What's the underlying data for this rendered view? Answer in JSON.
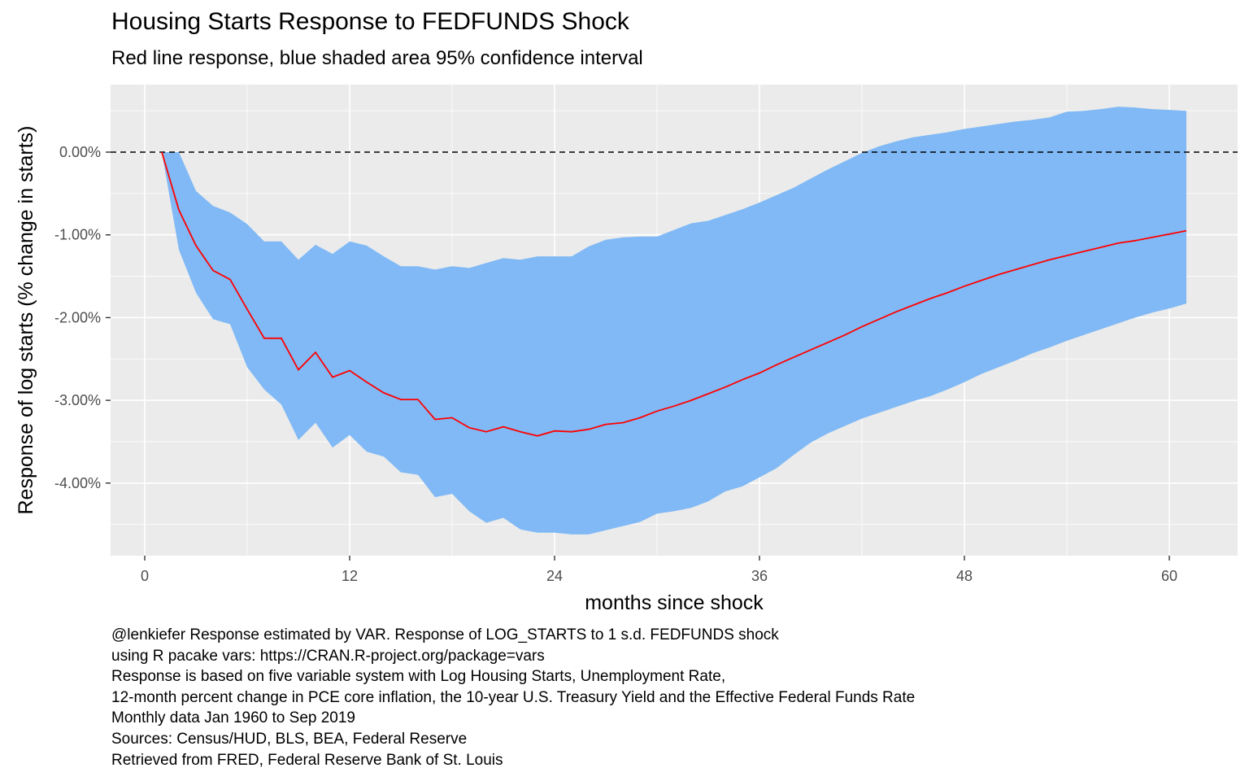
{
  "chart_data": {
    "type": "line",
    "title": "Housing Starts Response to FEDFUNDS Shock",
    "subtitle": "Red line response, blue shaded area 95% confidence interval",
    "xlabel": "months since shock",
    "ylabel": "Response of log starts (% change in starts)",
    "x_ticks": [
      0,
      12,
      24,
      36,
      48,
      60
    ],
    "y_ticks": [
      0.0,
      -1.0,
      -2.0,
      -3.0,
      -4.0
    ],
    "y_tick_labels": [
      "0.00%",
      "-1.00%",
      "-2.00%",
      "-3.00%",
      "-4.00%"
    ],
    "xlim": [
      -2,
      63
    ],
    "ylim": [
      -4.93,
      0.8
    ],
    "reference_line": {
      "y": 0,
      "style": "dashed"
    },
    "x": [
      1,
      2,
      3,
      4,
      5,
      6,
      7,
      8,
      9,
      10,
      11,
      12,
      13,
      14,
      15,
      16,
      17,
      18,
      19,
      20,
      21,
      22,
      23,
      24,
      25,
      26,
      27,
      28,
      29,
      30,
      31,
      32,
      33,
      34,
      35,
      36,
      37,
      38,
      39,
      40,
      41,
      42,
      43,
      44,
      45,
      46,
      47,
      48,
      49,
      50,
      51,
      52,
      53,
      54,
      55,
      56,
      57,
      58,
      59,
      60,
      61
    ],
    "series": [
      {
        "name": "Response",
        "color": "#ff0000",
        "values": [
          0.0,
          -0.7,
          -1.13,
          -1.43,
          -1.54,
          -1.9,
          -2.25,
          -2.25,
          -2.63,
          -2.42,
          -2.72,
          -2.64,
          -2.78,
          -2.91,
          -2.99,
          -2.99,
          -3.23,
          -3.21,
          -3.33,
          -3.38,
          -3.32,
          -3.38,
          -3.43,
          -3.37,
          -3.38,
          -3.35,
          -3.29,
          -3.27,
          -3.21,
          -3.13,
          -3.07,
          -3.0,
          -2.92,
          -2.84,
          -2.75,
          -2.67,
          -2.57,
          -2.48,
          -2.39,
          -2.3,
          -2.21,
          -2.11,
          -2.02,
          -1.93,
          -1.85,
          -1.77,
          -1.7,
          -1.62,
          -1.55,
          -1.48,
          -1.42,
          -1.36,
          -1.3,
          -1.25,
          -1.2,
          -1.15,
          -1.1,
          -1.07,
          -1.03,
          -0.99,
          -0.95
        ]
      },
      {
        "name": "95% CI upper",
        "color": "#80b9f5",
        "values": [
          0.0,
          0.0,
          -0.47,
          -0.65,
          -0.73,
          -0.87,
          -1.08,
          -1.08,
          -1.3,
          -1.12,
          -1.23,
          -1.08,
          -1.13,
          -1.26,
          -1.38,
          -1.38,
          -1.42,
          -1.38,
          -1.4,
          -1.34,
          -1.28,
          -1.3,
          -1.26,
          -1.26,
          -1.26,
          -1.14,
          -1.06,
          -1.03,
          -1.02,
          -1.02,
          -0.94,
          -0.86,
          -0.83,
          -0.76,
          -0.69,
          -0.61,
          -0.52,
          -0.43,
          -0.32,
          -0.21,
          -0.11,
          -0.01,
          0.07,
          0.13,
          0.18,
          0.21,
          0.24,
          0.28,
          0.31,
          0.34,
          0.37,
          0.39,
          0.42,
          0.49,
          0.5,
          0.52,
          0.55,
          0.54,
          0.52,
          0.51,
          0.5
        ]
      },
      {
        "name": "95% CI lower",
        "color": "#80b9f5",
        "values": [
          0.0,
          -1.18,
          -1.7,
          -2.02,
          -2.08,
          -2.6,
          -2.87,
          -3.05,
          -3.48,
          -3.27,
          -3.57,
          -3.42,
          -3.62,
          -3.68,
          -3.87,
          -3.9,
          -4.17,
          -4.13,
          -4.34,
          -4.48,
          -4.42,
          -4.56,
          -4.6,
          -4.6,
          -4.62,
          -4.62,
          -4.57,
          -4.52,
          -4.47,
          -4.37,
          -4.34,
          -4.3,
          -4.22,
          -4.1,
          -4.04,
          -3.93,
          -3.82,
          -3.66,
          -3.51,
          -3.4,
          -3.31,
          -3.22,
          -3.15,
          -3.08,
          -3.01,
          -2.95,
          -2.87,
          -2.78,
          -2.68,
          -2.6,
          -2.52,
          -2.43,
          -2.36,
          -2.28,
          -2.21,
          -2.14,
          -2.07,
          -2.0,
          -1.94,
          -1.89,
          -1.83
        ]
      }
    ]
  },
  "caption_lines": [
    "@lenkiefer Response estimated by VAR. Response of LOG_STARTS to 1 s.d. FEDFUNDS shock",
    "using R pacake vars: https://CRAN.R-project.org/package=vars",
    "Response is based on five variable system with Log Housing Starts, Unemployment Rate,",
    "12-month percent change in PCE core inflation, the 10-year U.S. Treasury Yield and the Effective Federal Funds Rate",
    "Monthly data Jan 1960 to Sep 2019",
    "Sources: Census/HUD, BLS, BEA, Federal Reserve",
    "Retrieved from FRED, Federal Reserve Bank of St. Louis"
  ],
  "colors": {
    "panel_background": "#ebebeb",
    "grid": "#ffffff",
    "ribbon": "#80b9f5",
    "line": "#ff0000",
    "reference_line": "#000000"
  }
}
